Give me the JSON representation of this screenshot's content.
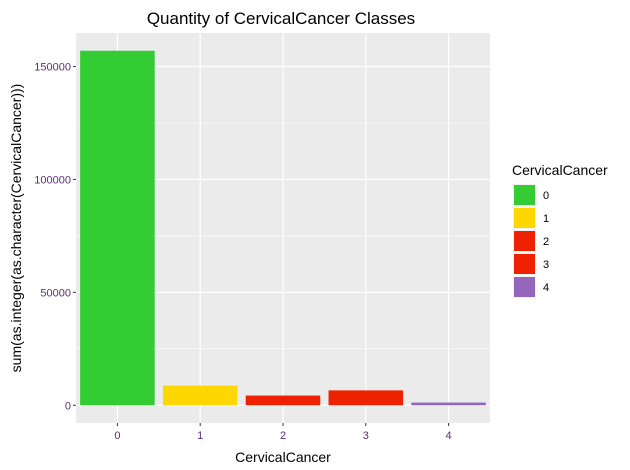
{
  "chart_data": {
    "type": "bar",
    "title": "Quantity of CervicalCancer Classes",
    "xlabel": "CervicalCancer",
    "ylabel": "sum(as.integer(as.character(CervicalCancer)))",
    "categories": [
      "0",
      "1",
      "2",
      "3",
      "4"
    ],
    "values": [
      157000,
      8700,
      4300,
      6600,
      1200
    ],
    "ylim": [
      -7850,
      164850
    ],
    "yticks": [
      0,
      50000,
      100000,
      150000
    ],
    "ytick_labels": [
      "0",
      "50000",
      "100000",
      "150000"
    ],
    "grid": true,
    "legend": {
      "title": "CervicalCancer",
      "placement": "right",
      "entries": [
        "0",
        "1",
        "2",
        "3",
        "4"
      ]
    },
    "colors": [
      "#33CC33",
      "#FFD700",
      "#EE2200",
      "#EE2200",
      "#9467BD"
    ],
    "panel_background": "#EBEBEB",
    "grid_color": "#FFFFFF",
    "tick_label_color": "#4D4D4D",
    "tick_label_color_x": "#5E2D79"
  }
}
